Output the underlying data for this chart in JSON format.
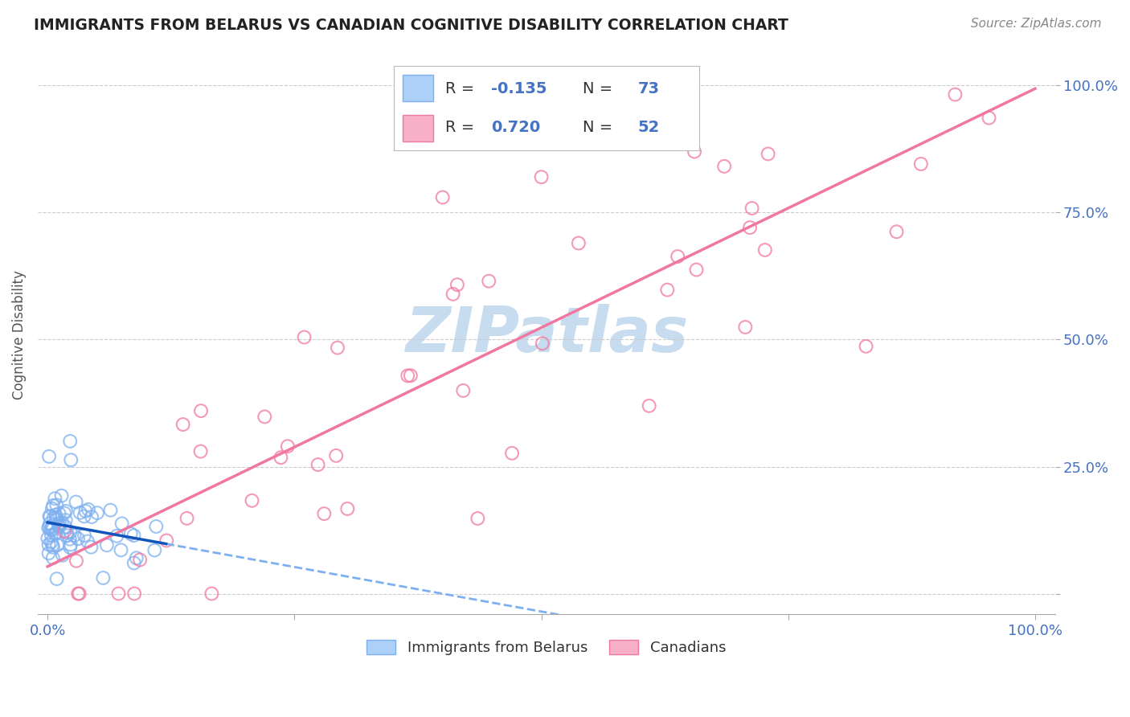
{
  "title": "IMMIGRANTS FROM BELARUS VS CANADIAN COGNITIVE DISABILITY CORRELATION CHART",
  "source": "Source: ZipAtlas.com",
  "ylabel": "Cognitive Disability",
  "ytick_vals": [
    0.0,
    0.25,
    0.5,
    0.75,
    1.0
  ],
  "ytick_labels": [
    "",
    "25.0%",
    "50.0%",
    "75.0%",
    "100.0%"
  ],
  "xtick_vals": [
    0.0,
    0.25,
    0.5,
    0.75,
    1.0
  ],
  "xtick_labels": [
    "0.0%",
    "",
    "",
    "",
    "100.0%"
  ],
  "legend_label1": "Immigrants from Belarus",
  "legend_label2": "Canadians",
  "legend_R1": "-0.135",
  "legend_N1": "73",
  "legend_R2": "0.720",
  "legend_N2": "52",
  "blue_color": "#7EB0F0",
  "pink_color": "#F078A0",
  "blue_fill": "#ADD0F8",
  "pink_fill": "#F8B0C8",
  "background_color": "#FFFFFF",
  "grid_color": "#CCCCCC",
  "title_color": "#222222",
  "axis_tick_color": "#4472C4",
  "watermark_color": "#C8DCF0",
  "ylabel_color": "#555555",
  "source_color": "#888888",
  "legend_text_color": "#333333",
  "legend_RN_color": "#4472C4",
  "blue_seed": 42,
  "pink_seed": 7,
  "blue_N": 73,
  "pink_N": 52,
  "xlim": [
    -0.01,
    1.02
  ],
  "ylim": [
    -0.04,
    1.06
  ]
}
